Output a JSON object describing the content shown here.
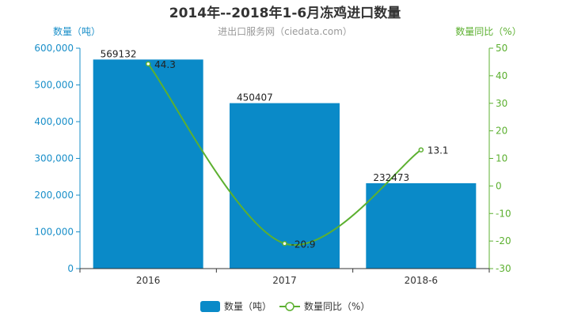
{
  "title": "2014年--2018年1-6月冻鸡进口数量",
  "subtitle": "进出口服务网（ciedata.com）",
  "colors": {
    "bar": "#0a8ac8",
    "line": "#5cb030",
    "left_axis": "#1a8fc9",
    "right_axis": "#5cb030"
  },
  "chart_data": {
    "type": "bar",
    "categories": [
      "2016",
      "2017",
      "2018-6"
    ],
    "series": [
      {
        "name": "数量（吨）",
        "type": "bar",
        "axis": "left",
        "values": [
          569132,
          450407,
          232473
        ]
      },
      {
        "name": "数量同比（%）",
        "type": "line",
        "axis": "right",
        "values": [
          44.3,
          -20.9,
          13.1
        ]
      }
    ],
    "ylabel_left": "数量（吨）",
    "ylabel_right": "数量同比（%）",
    "ylim_left": [
      0,
      600000
    ],
    "ylim_right": [
      -30,
      50
    ],
    "yticks_left": [
      "0",
      "100,000",
      "200,000",
      "300,000",
      "400,000",
      "500,000",
      "600,000"
    ],
    "yticks_right": [
      "-30",
      "-20",
      "-10",
      "0",
      "10",
      "20",
      "30",
      "40",
      "50"
    ],
    "grid": false,
    "legend_position": "bottom-center"
  },
  "legend": {
    "bar_label": "数量（吨）",
    "line_label": "数量同比（%）"
  }
}
